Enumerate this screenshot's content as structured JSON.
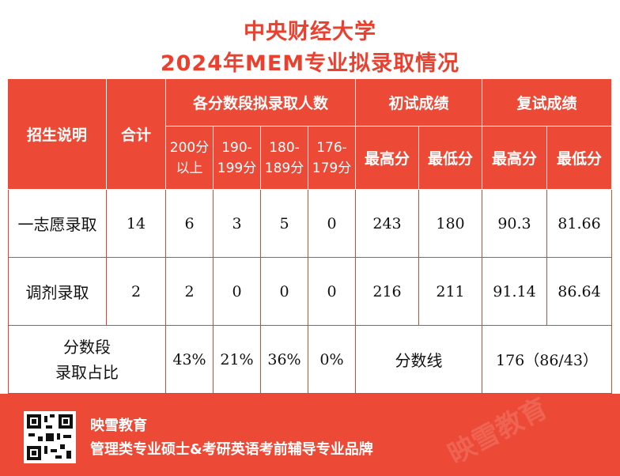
{
  "title": {
    "line1": "中央财经大学",
    "line2": "2024年MEM专业拟录取情况"
  },
  "headers": {
    "enroll_desc": "招生说明",
    "total": "合计",
    "score_bands": "各分数段拟录取人数",
    "prelim": "初试成绩",
    "retest": "复试成绩",
    "band_200_l1": "200分",
    "band_200_l2": "以上",
    "band_190_l1": "190-",
    "band_190_l2": "199分",
    "band_180_l1": "180-",
    "band_180_l2": "189分",
    "band_176_l1": "176-",
    "band_176_l2": "179分",
    "prelim_max": "最高分",
    "prelim_min": "最低分",
    "retest_max": "最高分",
    "retest_min": "最低分"
  },
  "rows": [
    {
      "label": "一志愿录取",
      "total": "14",
      "b200": "6",
      "b190": "3",
      "b180": "5",
      "b176": "0",
      "prelim_max": "243",
      "prelim_min": "180",
      "retest_max": "90.3",
      "retest_min": "81.66"
    },
    {
      "label": "调剂录取",
      "total": "2",
      "b200": "2",
      "b190": "0",
      "b180": "0",
      "b176": "0",
      "prelim_max": "216",
      "prelim_min": "211",
      "retest_max": "91.14",
      "retest_min": "86.64"
    }
  ],
  "ratio_row": {
    "label_l1": "分数段",
    "label_l2": "录取占比",
    "b200": "43%",
    "b190": "21%",
    "b180": "36%",
    "b176": "0%",
    "cutoff_label": "分数线",
    "cutoff_value": "176（86/43）"
  },
  "footer": {
    "brand": "映雪教育",
    "slogan": "管理类专业硕士&考研英语考前辅导专业品牌"
  },
  "watermark": "映雪教育",
  "colors": {
    "brand_red": "#e9402f",
    "header_bg": "#ec4a36"
  }
}
